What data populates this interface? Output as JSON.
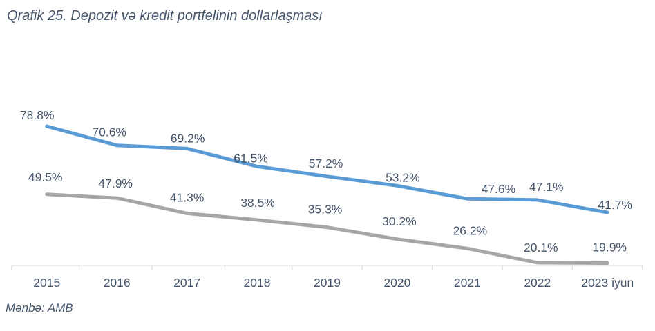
{
  "title": "Qrafik 25. Depozit və kredit portfelinin dollarlaşması",
  "source": "Mənbə: AMB",
  "colors": {
    "upper_line": "#5B9BD5",
    "lower_line": "#A6A6A6",
    "text": "#44546A",
    "axis": "#D9D9D9"
  },
  "chart_data": {
    "type": "line",
    "title": "Qrafik 25. Depozit və kredit portfelinin dollarlaşması",
    "categories": [
      "2015",
      "2016",
      "2017",
      "2018",
      "2019",
      "2020",
      "2021",
      "2022",
      "2023 iyun"
    ],
    "series": [
      {
        "id": "upper-blue",
        "color": "#5B9BD5",
        "values": [
          78.8,
          70.6,
          69.2,
          61.5,
          57.2,
          53.2,
          47.6,
          47.1,
          41.7
        ],
        "labels": [
          "78.8%",
          "70.6%",
          "69.2%",
          "61.5%",
          "57.2%",
          "53.2%",
          "47.6%",
          "47.1%",
          "41.7%"
        ]
      },
      {
        "id": "lower-gray",
        "color": "#A6A6A6",
        "values": [
          49.5,
          47.9,
          41.3,
          38.5,
          35.3,
          30.2,
          26.2,
          20.1,
          19.9
        ],
        "labels": [
          "49.5%",
          "47.9%",
          "41.3%",
          "38.5%",
          "35.3%",
          "30.2%",
          "26.2%",
          "20.1%",
          "19.9%"
        ]
      }
    ],
    "xlabel": "",
    "ylabel": "",
    "unit": "%",
    "legend": "none",
    "gridlines": false,
    "value_axis_visible": false,
    "category_axis_visible": true,
    "data_labels_visible": true
  }
}
